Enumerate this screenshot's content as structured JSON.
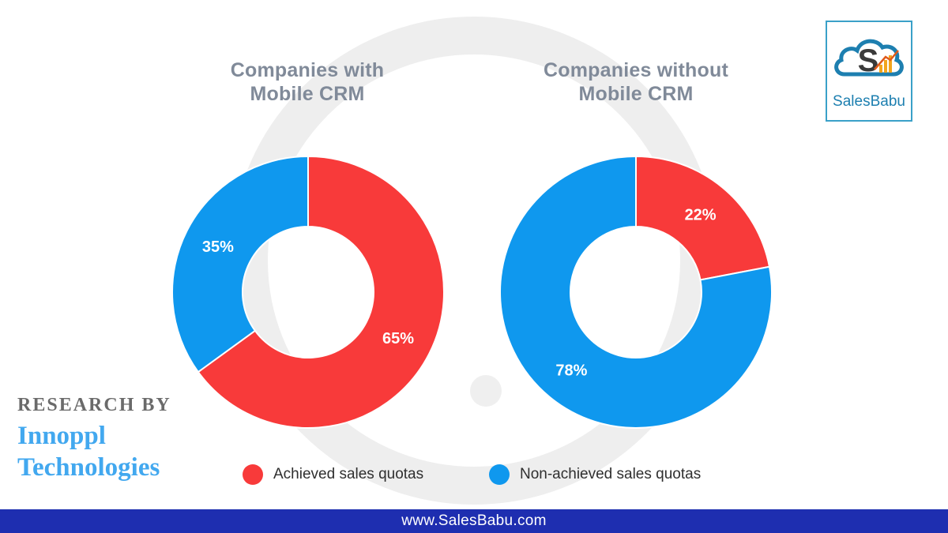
{
  "chart_data": [
    {
      "type": "pie",
      "variant": "donut",
      "title": "Companies with\nMobile CRM",
      "categories": [
        "Achieved sales quotas",
        "Non-achieved sales quotas"
      ],
      "values": [
        65,
        35
      ],
      "labels": [
        "65%",
        "35%"
      ],
      "colors": [
        "#f83a3a",
        "#0f98ee"
      ]
    },
    {
      "type": "pie",
      "variant": "donut",
      "title": "Companies without\nMobile CRM",
      "categories": [
        "Achieved sales quotas",
        "Non-achieved sales quotas"
      ],
      "values": [
        22,
        78
      ],
      "labels": [
        "22%",
        "78%"
      ],
      "colors": [
        "#f83a3a",
        "#0f98ee"
      ]
    }
  ],
  "legend": [
    {
      "label": "Achieved sales quotas",
      "color": "#f83a3a"
    },
    {
      "label": "Non-achieved sales quotas",
      "color": "#0f98ee"
    }
  ],
  "logo": {
    "text": "SalesBabu",
    "icon": "cloud-s-chart-logo-icon"
  },
  "research": {
    "heading": "RESEARCH BY",
    "name_line1": "Innoppl",
    "name_line2": "Technologies"
  },
  "footer": {
    "url": "www.SalesBabu.com",
    "background": "#1e2eb0"
  }
}
